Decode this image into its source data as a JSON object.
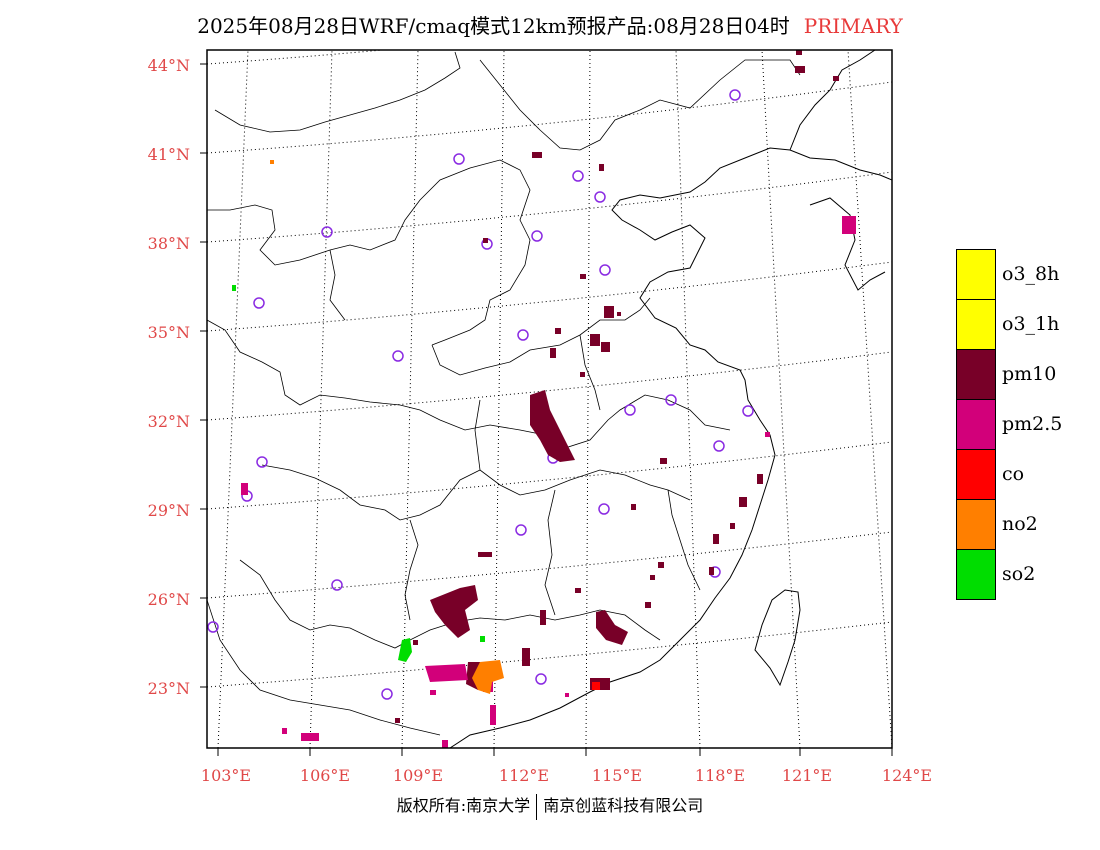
{
  "header": {
    "title": "2025年08月28日WRF/cmaq模式12km预报产品:08月28日04时",
    "primary": "PRIMARY"
  },
  "axes": {
    "lat_labels": [
      "44°N",
      "41°N",
      "38°N",
      "35°N",
      "32°N",
      "29°N",
      "26°N",
      "23°N"
    ],
    "lon_labels": [
      "103°E",
      "106°E",
      "109°E",
      "112°E",
      "115°E",
      "118°E",
      "121°E",
      "124°E"
    ]
  },
  "legend": {
    "items": [
      {
        "label": "o3_8h",
        "color": "#ffff00"
      },
      {
        "label": "o3_1h",
        "color": "#ffff00"
      },
      {
        "label": "pm10",
        "color": "#780028"
      },
      {
        "label": "pm2.5",
        "color": "#d2007a"
      },
      {
        "label": "co",
        "color": "#ff0000"
      },
      {
        "label": "no2",
        "color": "#ff7f00"
      },
      {
        "label": "so2",
        "color": "#00dd00"
      }
    ]
  },
  "footer": {
    "left": "版权所有:南京大学",
    "right": "南京创蓝科技有限公司"
  }
}
